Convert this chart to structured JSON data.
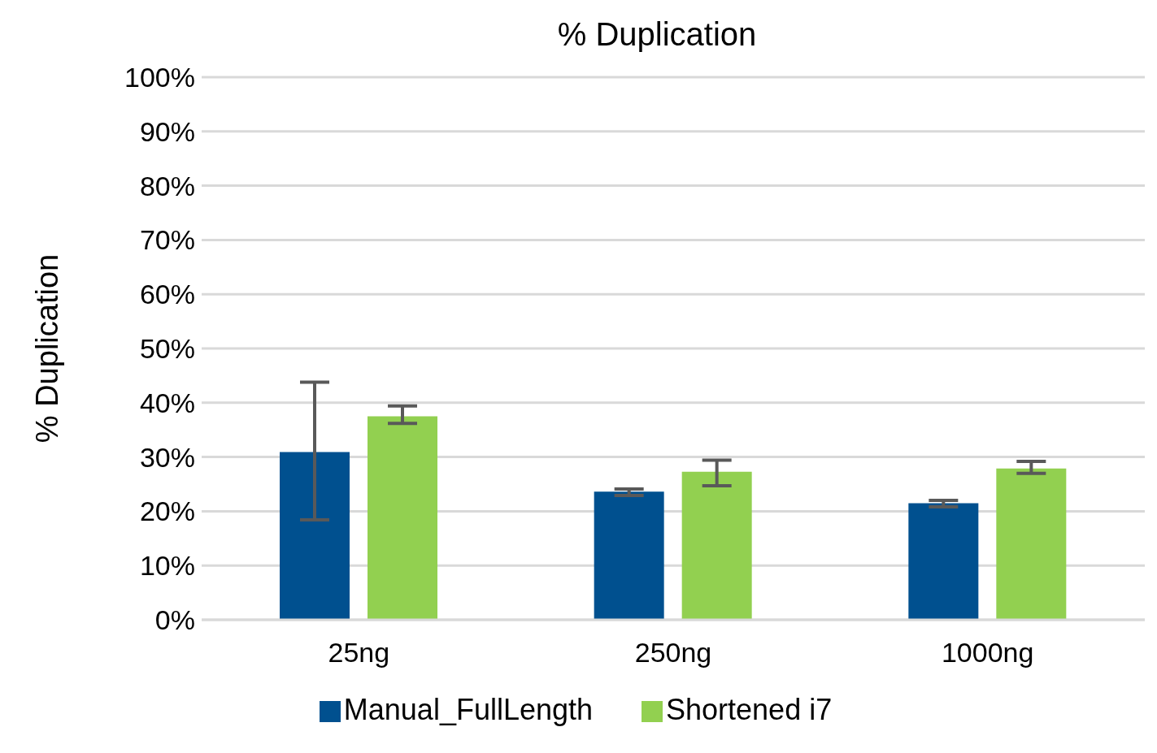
{
  "chart_data": {
    "type": "bar",
    "title": "% Duplication",
    "ylabel": "% Duplication",
    "categories": [
      "25ng",
      "250ng",
      "1000ng"
    ],
    "series": [
      {
        "name": "Manual_FullLength",
        "color": "#00508f",
        "values": [
          30.9,
          23.6,
          21.5
        ],
        "errors": [
          [
            18.4,
            43.8
          ],
          [
            22.9,
            24.1
          ],
          [
            20.8,
            22.0
          ]
        ]
      },
      {
        "name": "Shortened i7",
        "color": "#92d050",
        "values": [
          37.5,
          27.3,
          27.9
        ],
        "errors": [
          [
            36.2,
            39.4
          ],
          [
            24.7,
            29.4
          ],
          [
            27.0,
            29.2
          ]
        ]
      }
    ],
    "ylim": [
      0,
      100
    ],
    "yticks": [
      {
        "value": 0,
        "label": "0%"
      },
      {
        "value": 10,
        "label": "10%"
      },
      {
        "value": 20,
        "label": "20%"
      },
      {
        "value": 30,
        "label": "30%"
      },
      {
        "value": 40,
        "label": "40%"
      },
      {
        "value": 50,
        "label": "50%"
      },
      {
        "value": 60,
        "label": "60%"
      },
      {
        "value": 70,
        "label": "70%"
      },
      {
        "value": 80,
        "label": "80%"
      },
      {
        "value": 90,
        "label": "90%"
      },
      {
        "value": 100,
        "label": "100%"
      }
    ],
    "grid": "y",
    "legend": "bottom"
  }
}
